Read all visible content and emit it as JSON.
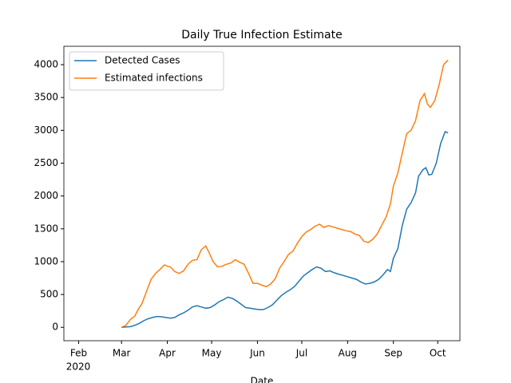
{
  "chart_data": {
    "type": "line",
    "title": "Daily True Infection Estimate",
    "x_label": "Date",
    "x_offset_label": "2020",
    "xlim": [
      22,
      290
    ],
    "xticks": [
      {
        "value": 32,
        "label": "Feb"
      },
      {
        "value": 61,
        "label": "Mar"
      },
      {
        "value": 92,
        "label": "Apr"
      },
      {
        "value": 122,
        "label": "May"
      },
      {
        "value": 153,
        "label": "Jun"
      },
      {
        "value": 183,
        "label": "Jul"
      },
      {
        "value": 214,
        "label": "Aug"
      },
      {
        "value": 245,
        "label": "Sep"
      },
      {
        "value": 275,
        "label": "Oct"
      }
    ],
    "ylim": [
      -204,
      4280
    ],
    "yticks": [
      0,
      500,
      1000,
      1500,
      2000,
      2500,
      3000,
      3500,
      4000
    ],
    "legend": "upper left",
    "series": [
      {
        "name": "Detected Cases",
        "color": "#1f77b4",
        "x": [
          61,
          64,
          67,
          70,
          73,
          76,
          79,
          82,
          85,
          88,
          91,
          94,
          97,
          100,
          103,
          106,
          109,
          112,
          115,
          118,
          121,
          124,
          127,
          130,
          133,
          136,
          139,
          142,
          145,
          148,
          151,
          154,
          157,
          160,
          163,
          166,
          169,
          172,
          175,
          178,
          181,
          184,
          187,
          190,
          193,
          196,
          199,
          202,
          205,
          208,
          211,
          214,
          217,
          220,
          223,
          226,
          229,
          232,
          235,
          238,
          241,
          243,
          245,
          248,
          251,
          254,
          257,
          260,
          262,
          265,
          267,
          269,
          271,
          274,
          277,
          280,
          282
        ],
        "values": [
          0,
          5,
          10,
          30,
          60,
          100,
          130,
          150,
          165,
          160,
          150,
          140,
          150,
          190,
          220,
          260,
          310,
          330,
          310,
          290,
          300,
          340,
          390,
          420,
          460,
          440,
          400,
          350,
          300,
          290,
          280,
          270,
          270,
          300,
          340,
          410,
          480,
          530,
          570,
          620,
          700,
          780,
          830,
          880,
          920,
          900,
          850,
          860,
          830,
          810,
          790,
          770,
          750,
          730,
          690,
          660,
          670,
          690,
          730,
          800,
          880,
          850,
          1050,
          1200,
          1550,
          1800,
          1900,
          2050,
          2300,
          2400,
          2430,
          2320,
          2330,
          2500,
          2800,
          2980,
          2960
        ]
      },
      {
        "name": "Estimated infections",
        "color": "#ff7f0e",
        "x": [
          61,
          64,
          67,
          70,
          72,
          75,
          78,
          81,
          84,
          87,
          90,
          92,
          94,
          97,
          100,
          103,
          106,
          109,
          112,
          115,
          118,
          120,
          123,
          126,
          129,
          132,
          135,
          138,
          141,
          144,
          147,
          150,
          153,
          156,
          159,
          162,
          165,
          168,
          171,
          174,
          177,
          180,
          183,
          186,
          189,
          192,
          195,
          198,
          201,
          204,
          207,
          210,
          213,
          216,
          219,
          222,
          225,
          228,
          231,
          234,
          237,
          240,
          243,
          245,
          248,
          251,
          254,
          257,
          260,
          263,
          266,
          268,
          270,
          273,
          276,
          279,
          282
        ],
        "values": [
          0,
          30,
          120,
          170,
          260,
          370,
          550,
          730,
          820,
          880,
          950,
          930,
          920,
          850,
          820,
          860,
          960,
          1020,
          1030,
          1180,
          1240,
          1150,
          1000,
          920,
          930,
          960,
          980,
          1030,
          990,
          960,
          820,
          670,
          670,
          640,
          620,
          660,
          740,
          900,
          1000,
          1110,
          1160,
          1280,
          1380,
          1450,
          1490,
          1540,
          1570,
          1520,
          1550,
          1530,
          1510,
          1490,
          1470,
          1460,
          1420,
          1400,
          1310,
          1290,
          1340,
          1420,
          1550,
          1680,
          1880,
          2150,
          2350,
          2650,
          2950,
          3000,
          3150,
          3450,
          3560,
          3400,
          3350,
          3450,
          3700,
          4000,
          4070
        ]
      }
    ]
  }
}
